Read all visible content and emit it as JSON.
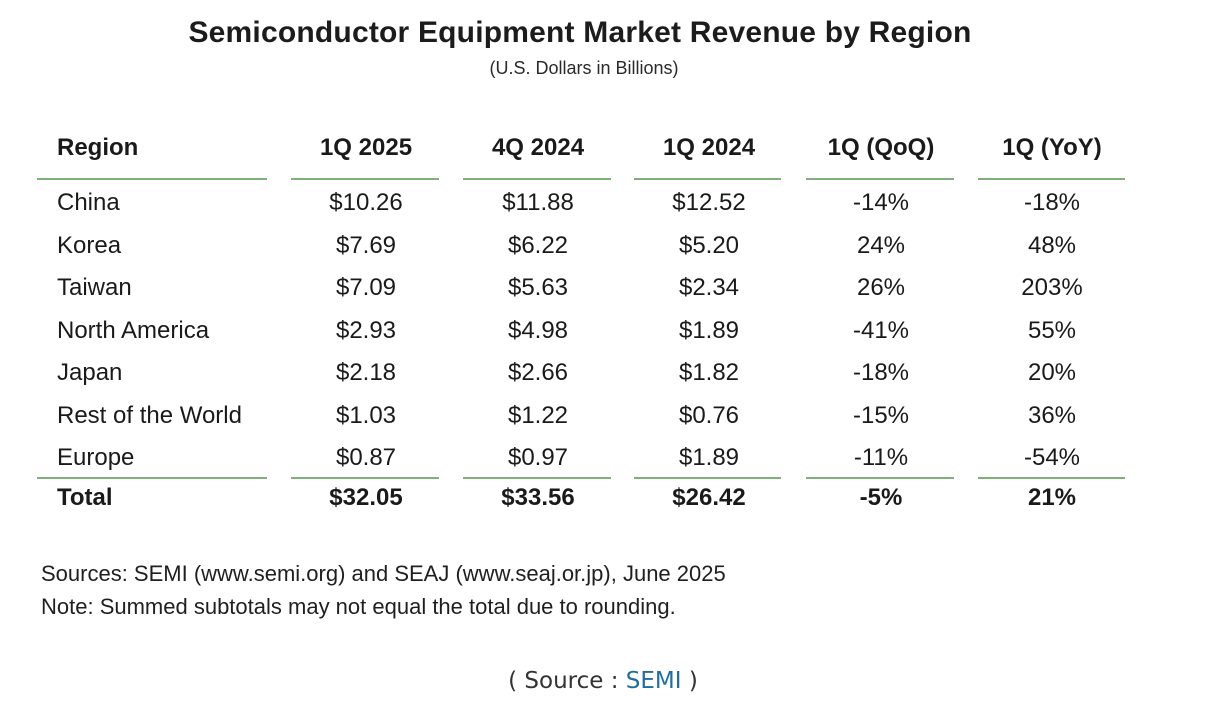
{
  "title": "Semiconductor Equipment Market Revenue by Region",
  "subtitle": "(U.S. Dollars in Billions)",
  "table": {
    "headers": [
      "Region",
      "1Q 2025",
      "4Q 2024",
      "1Q 2024",
      "1Q (QoQ)",
      "1Q (YoY)"
    ],
    "rows": [
      [
        "China",
        "$10.26",
        "$11.88",
        "$12.52",
        "-14%",
        "-18%"
      ],
      [
        "Korea",
        "$7.69",
        "$6.22",
        "$5.20",
        "24%",
        "48%"
      ],
      [
        "Taiwan",
        "$7.09",
        "$5.63",
        "$2.34",
        "26%",
        "203%"
      ],
      [
        "North America",
        "$2.93",
        "$4.98",
        "$1.89",
        "-41%",
        "55%"
      ],
      [
        "Japan",
        "$2.18",
        "$2.66",
        "$1.82",
        "-18%",
        "20%"
      ],
      [
        "Rest of the World",
        "$1.03",
        "$1.22",
        "$0.76",
        "-15%",
        "36%"
      ],
      [
        "Europe",
        "$0.87",
        "$0.97",
        "$1.89",
        "-11%",
        "-54%"
      ]
    ],
    "total": [
      "Total",
      "$32.05",
      "$33.56",
      "$26.42",
      "-5%",
      "21%"
    ]
  },
  "notes": {
    "sources": "Sources: SEMI (www.semi.org) and SEAJ (www.seaj.or.jp), June 2025",
    "note": "Note: Summed subtotals may not equal the total due to rounding."
  },
  "caption": {
    "open": "( Source : ",
    "link": "SEMI",
    "close": " )"
  },
  "colors": {
    "rule": "#7fb07a",
    "link": "#1e6fa0"
  }
}
